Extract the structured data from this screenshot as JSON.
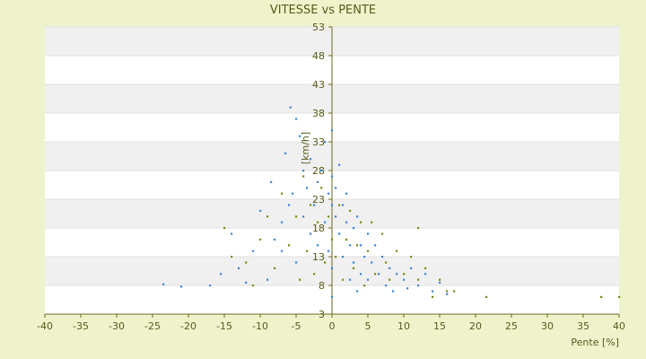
{
  "chart_data": {
    "type": "scatter",
    "title": "VITESSE vs PENTE",
    "xlabel": "Pente [%]",
    "ylabel": "[km/h]",
    "xlim": [
      -40,
      40
    ],
    "ylim": [
      3,
      53
    ],
    "xticks": [
      -40,
      -35,
      -30,
      -25,
      -20,
      -15,
      -10,
      -5,
      0,
      5,
      10,
      15,
      20,
      25,
      30,
      35,
      40
    ],
    "yticks": [
      3,
      8,
      13,
      18,
      23,
      28,
      33,
      38,
      43,
      48,
      53
    ],
    "grid": "horizontal bands",
    "legend": "none",
    "series": [
      {
        "color": "#3a86d8",
        "points": [
          [
            -23.5,
            8.2
          ],
          [
            -21,
            7.8
          ],
          [
            -17,
            8
          ],
          [
            -15.5,
            10
          ],
          [
            -14,
            17
          ],
          [
            -13,
            11
          ],
          [
            -12,
            8.5
          ],
          [
            -11,
            14
          ],
          [
            -10,
            21
          ],
          [
            -9,
            9
          ],
          [
            -8.5,
            26
          ],
          [
            -8,
            16
          ],
          [
            -7,
            14
          ],
          [
            -7,
            19
          ],
          [
            -6.5,
            31
          ],
          [
            -6,
            22
          ],
          [
            -5.8,
            39
          ],
          [
            -5.5,
            24
          ],
          [
            -5,
            12
          ],
          [
            -5,
            37
          ],
          [
            -4.5,
            34
          ],
          [
            -4,
            28
          ],
          [
            -4,
            20
          ],
          [
            -3.5,
            25
          ],
          [
            -3,
            17
          ],
          [
            -3,
            30
          ],
          [
            -2.5,
            22
          ],
          [
            -2,
            26
          ],
          [
            -2,
            15
          ],
          [
            -1.5,
            28
          ],
          [
            -1,
            19
          ],
          [
            -1,
            33
          ],
          [
            -0.5,
            24
          ],
          [
            -0.5,
            14
          ],
          [
            0,
            35
          ],
          [
            0,
            22
          ],
          [
            0,
            27
          ],
          [
            0,
            11
          ],
          [
            0,
            6
          ],
          [
            0.5,
            20
          ],
          [
            0.5,
            25
          ],
          [
            1,
            17
          ],
          [
            1,
            29
          ],
          [
            1.5,
            22
          ],
          [
            1.5,
            13
          ],
          [
            2,
            19
          ],
          [
            2,
            24
          ],
          [
            2.5,
            15
          ],
          [
            2.5,
            9
          ],
          [
            3,
            18
          ],
          [
            3,
            12
          ],
          [
            3.5,
            20
          ],
          [
            3.5,
            7
          ],
          [
            4,
            15
          ],
          [
            4,
            10
          ],
          [
            4.5,
            13
          ],
          [
            5,
            17
          ],
          [
            5,
            9
          ],
          [
            5.5,
            12
          ],
          [
            6,
            15
          ],
          [
            6.5,
            10
          ],
          [
            7,
            13
          ],
          [
            7.5,
            8
          ],
          [
            8,
            11
          ],
          [
            8.5,
            7
          ],
          [
            9,
            10
          ],
          [
            10,
            9
          ],
          [
            10.5,
            7.5
          ],
          [
            11,
            11
          ],
          [
            12,
            8
          ],
          [
            13,
            10
          ],
          [
            14,
            7
          ],
          [
            15,
            8.5
          ],
          [
            16,
            6.5
          ]
        ]
      },
      {
        "color": "#7a8a10",
        "points": [
          [
            -15,
            18
          ],
          [
            -14,
            13
          ],
          [
            -12,
            12
          ],
          [
            -11,
            8
          ],
          [
            -10,
            16
          ],
          [
            -9,
            20
          ],
          [
            -8,
            11
          ],
          [
            -7,
            24
          ],
          [
            -6,
            15
          ],
          [
            -5,
            20
          ],
          [
            -4.5,
            9
          ],
          [
            -4,
            27
          ],
          [
            -3.5,
            14
          ],
          [
            -3,
            22
          ],
          [
            -2.5,
            10
          ],
          [
            -2,
            19
          ],
          [
            -1.5,
            25
          ],
          [
            -1,
            12
          ],
          [
            -0.5,
            20
          ],
          [
            0,
            16
          ],
          [
            0.5,
            13
          ],
          [
            1,
            22
          ],
          [
            1.5,
            9
          ],
          [
            2,
            16
          ],
          [
            2.5,
            21
          ],
          [
            3,
            11
          ],
          [
            3.5,
            15
          ],
          [
            4,
            19
          ],
          [
            4.5,
            8
          ],
          [
            5,
            14
          ],
          [
            5.5,
            19
          ],
          [
            6,
            10
          ],
          [
            7,
            17
          ],
          [
            7.5,
            12
          ],
          [
            8,
            9
          ],
          [
            9,
            14
          ],
          [
            10,
            10
          ],
          [
            11,
            13
          ],
          [
            12,
            18
          ],
          [
            12,
            9
          ],
          [
            13,
            11
          ],
          [
            14,
            6
          ],
          [
            15,
            9
          ],
          [
            16,
            7
          ],
          [
            17,
            7
          ],
          [
            21.5,
            6
          ],
          [
            37.5,
            6
          ],
          [
            40,
            6
          ]
        ]
      }
    ]
  }
}
